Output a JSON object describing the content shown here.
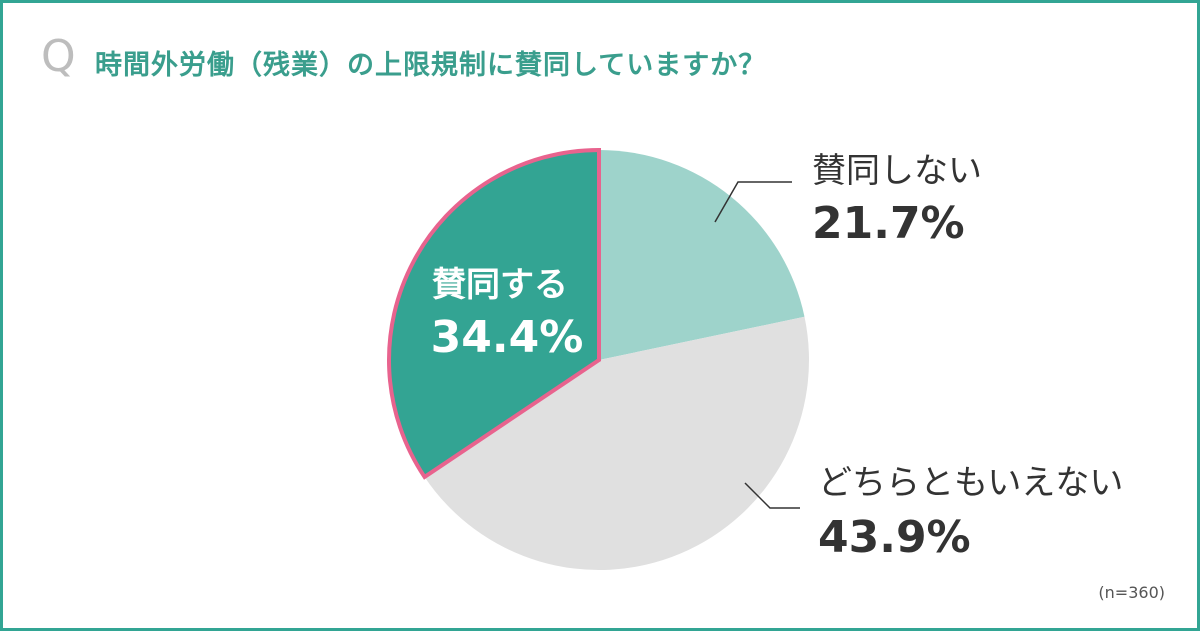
{
  "question": {
    "marker": "Q",
    "text": "時間外労働（残業）の上限規制に賛同していますか？"
  },
  "note": "(n=360)",
  "colors": {
    "frame": "#32a594",
    "title": "#3a9e8d",
    "agree": "#33a493",
    "agree_outline": "#e8638e",
    "disagree": "#9ed3cb",
    "neutral": "#e0e0e0",
    "label_dark": "#333333",
    "label_light": "#ffffff"
  },
  "chart_data": {
    "type": "pie",
    "start": "12 o'clock, clockwise",
    "slices": [
      {
        "label": "賛同しない",
        "value_label": "21.7%",
        "value": 21.7,
        "color": "#9ed3cb"
      },
      {
        "label": "どちらともいえない",
        "value_label": "43.9%",
        "value": 43.9,
        "color": "#e0e0e0"
      },
      {
        "label": "賛同する",
        "value_label": "34.4%",
        "value": 34.4,
        "color": "#33a493",
        "highlight": true
      }
    ]
  }
}
